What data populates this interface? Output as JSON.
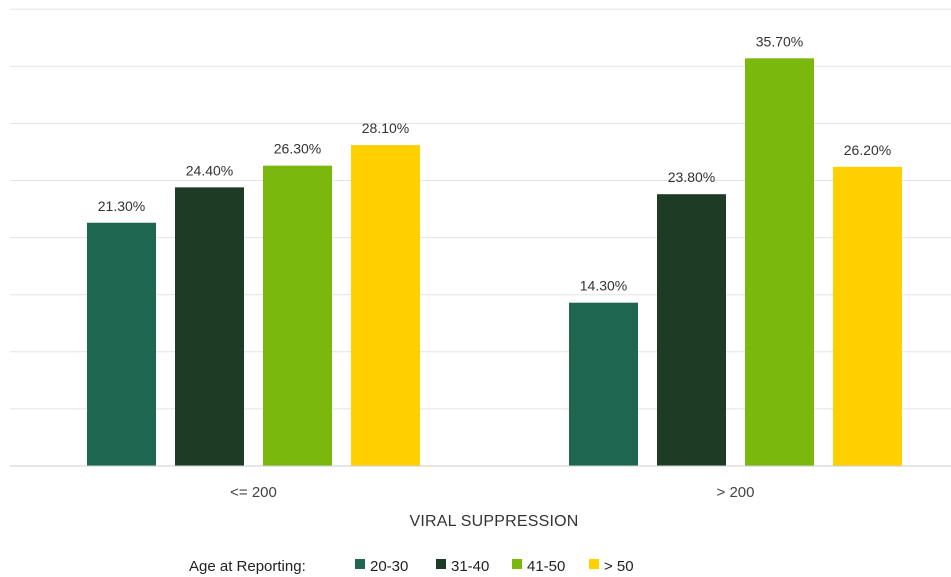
{
  "chart_data": {
    "type": "bar",
    "title": "",
    "categories": [
      "<= 200",
      "> 200"
    ],
    "xlabel": "VIRAL SUPPRESSION",
    "ylabel": "",
    "ylim": [
      0,
      40
    ],
    "grid": true,
    "legend": {
      "title": "Age at Reporting:",
      "placement": "bottom"
    },
    "series": [
      {
        "name": "20-30",
        "color": "#1e6650",
        "values": [
          21.3,
          14.3
        ],
        "labels": [
          "21.30%",
          "14.30%"
        ]
      },
      {
        "name": "31-40",
        "color": "#1e3b25",
        "values": [
          24.4,
          23.8
        ],
        "labels": [
          "24.40%",
          "23.80%"
        ]
      },
      {
        "name": "41-50",
        "color": "#7ab80e",
        "values": [
          26.3,
          35.7
        ],
        "labels": [
          "26.30%",
          "35.70%"
        ]
      },
      {
        "name": "> 50",
        "color": "#fed000",
        "values": [
          28.1,
          26.2
        ],
        "labels": [
          "28.10%",
          "26.20%"
        ]
      }
    ],
    "colors": {
      "grid": "#e3e3e3",
      "axis": "#cccccc"
    }
  }
}
